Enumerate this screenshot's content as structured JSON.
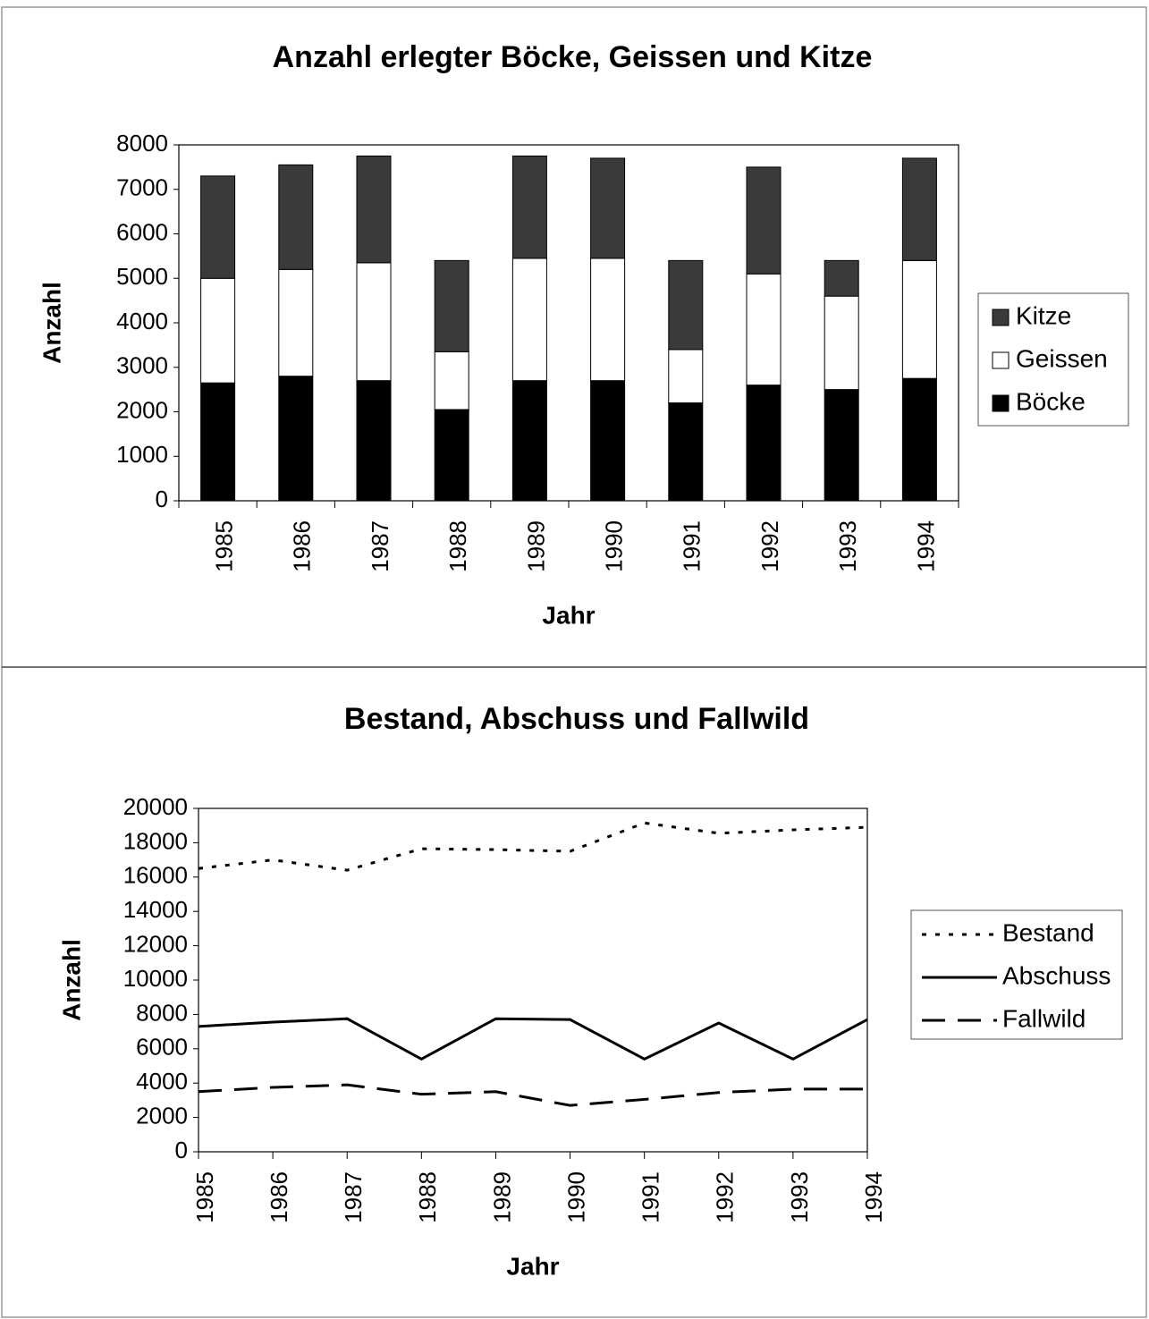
{
  "chart_data": [
    {
      "type": "stacked_bar",
      "title": "Anzahl erlegter Böcke, Geissen und Kitze",
      "x_label": "Jahr",
      "y_label": "Anzahl",
      "categories": [
        "1985",
        "1986",
        "1987",
        "1988",
        "1989",
        "1990",
        "1991",
        "1992",
        "1993",
        "1994"
      ],
      "series": [
        {
          "name": "Böcke",
          "color": "#000000",
          "values": [
            2650,
            2800,
            2700,
            2050,
            2700,
            2700,
            2200,
            2600,
            2500,
            2750
          ]
        },
        {
          "name": "Geissen",
          "color": "#ffffff",
          "values": [
            2350,
            2400,
            2650,
            1300,
            2750,
            2750,
            1200,
            2500,
            2100,
            2650
          ]
        },
        {
          "name": "Kitze",
          "color": "#3a3a3a",
          "values": [
            2300,
            2350,
            2400,
            2050,
            2300,
            2250,
            2000,
            2400,
            800,
            2300
          ]
        }
      ],
      "ylim": [
        0,
        8000
      ],
      "yticks": [
        0,
        1000,
        2000,
        3000,
        4000,
        5000,
        6000,
        7000,
        8000
      ],
      "legend": "right"
    },
    {
      "type": "line",
      "title": "Bestand, Abschuss und Fallwild",
      "x_label": "Jahr",
      "y_label": "Anzahl",
      "categories": [
        "1985",
        "1986",
        "1987",
        "1988",
        "1989",
        "1990",
        "1991",
        "1992",
        "1993",
        "1994"
      ],
      "series": [
        {
          "name": "Bestand",
          "color": "#000000",
          "dash": "dotted",
          "values": [
            16500,
            17000,
            16400,
            17650,
            17600,
            17500,
            19150,
            18550,
            18750,
            18900
          ]
        },
        {
          "name": "Abschuss",
          "color": "#000000",
          "dash": "solid",
          "values": [
            7300,
            7550,
            7750,
            5400,
            7750,
            7700,
            5400,
            7500,
            5400,
            7700
          ]
        },
        {
          "name": "Fallwild",
          "color": "#000000",
          "dash": "dashed",
          "values": [
            3500,
            3750,
            3900,
            3350,
            3500,
            2700,
            3050,
            3450,
            3650,
            3650
          ]
        }
      ],
      "ylim": [
        0,
        20000
      ],
      "yticks": [
        0,
        2000,
        4000,
        6000,
        8000,
        10000,
        12000,
        14000,
        16000,
        18000,
        20000
      ],
      "legend": "right"
    }
  ]
}
